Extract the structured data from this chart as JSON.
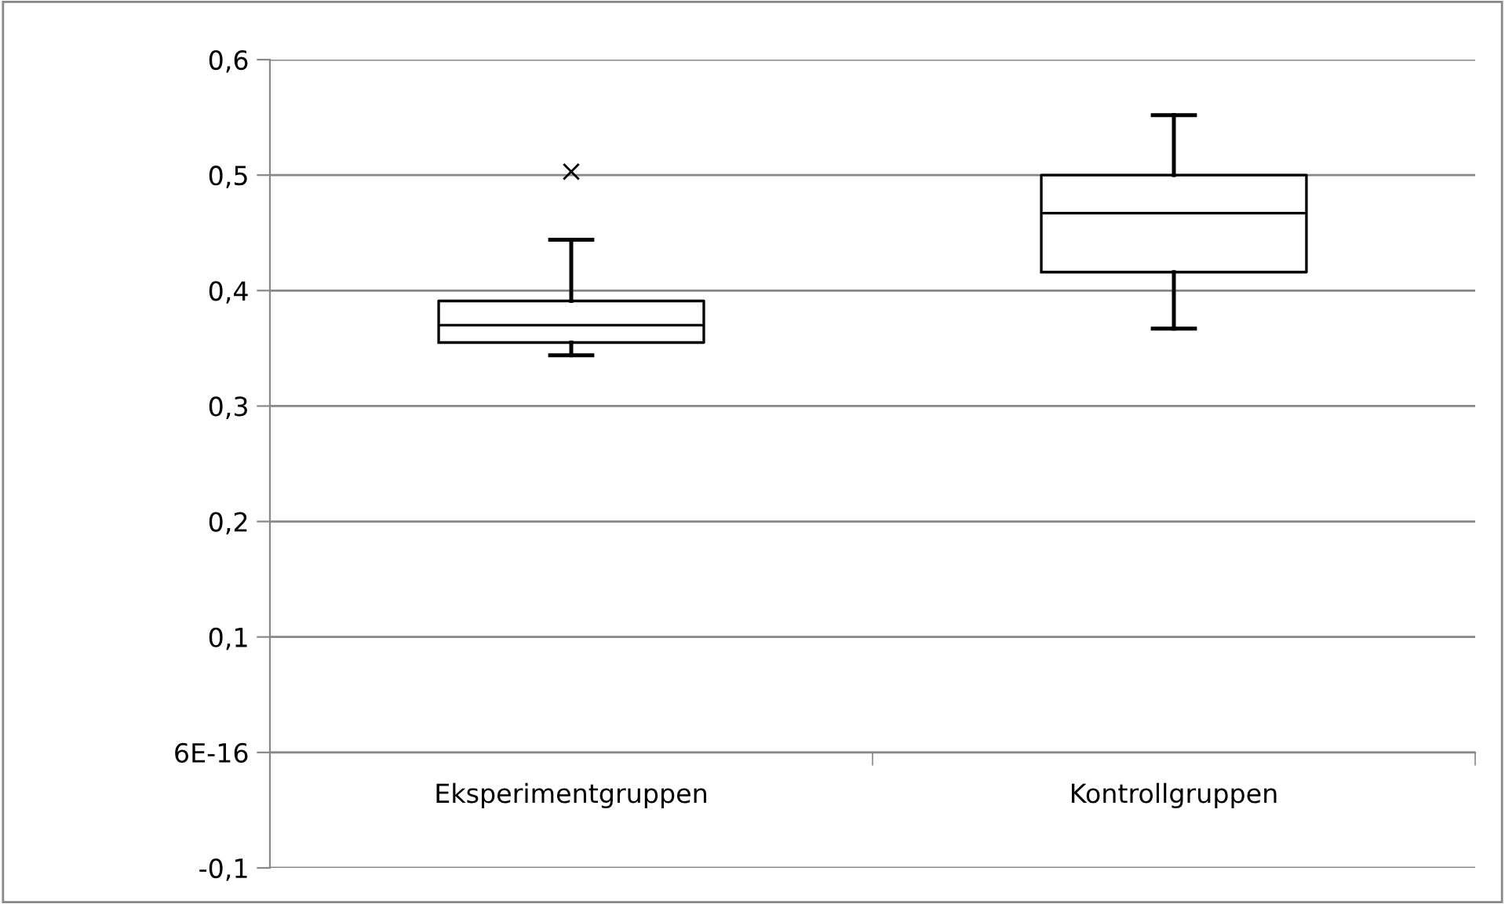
{
  "chart_data": {
    "type": "box",
    "categories": [
      "Eksperimentgruppen",
      "Kontrollgruppen"
    ],
    "boxes": [
      {
        "low": 0.344,
        "q1": 0.355,
        "median": 0.37,
        "q3": 0.391,
        "high": 0.444,
        "outliers": [
          0.503
        ]
      },
      {
        "low": 0.367,
        "q1": 0.416,
        "median": 0.467,
        "q3": 0.5,
        "high": 0.552
      }
    ],
    "color": "#000000",
    "marker": "cross",
    "ylim": [
      -0.1,
      0.6
    ],
    "yticks": [
      {
        "value": -0.1,
        "label": "-0,1"
      },
      {
        "value": 0,
        "label": "6E-16"
      },
      {
        "value": 0.1,
        "label": "0,1"
      },
      {
        "value": 0.2,
        "label": "0,2"
      },
      {
        "value": 0.3,
        "label": "0,3"
      },
      {
        "value": 0.4,
        "label": "0,4"
      },
      {
        "value": 0.5,
        "label": "0,5"
      },
      {
        "value": 0.6,
        "label": "0,6"
      }
    ],
    "grid": "y"
  }
}
